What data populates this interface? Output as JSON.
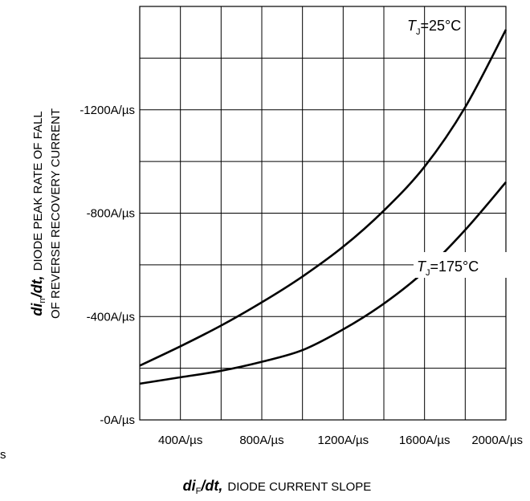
{
  "chart_data": {
    "type": "line",
    "title": "",
    "xlabel": {
      "main": "di",
      "sub": "F",
      "rest": "/dt,",
      "desc": "DIODE CURRENT SLOPE"
    },
    "ylabel": {
      "main": "di",
      "sub": "rr",
      "rest": "/dt,",
      "desc1": "DIODE PEAK RATE OF FALL",
      "desc2": "OF REVERSE RECOVERY CURRENT"
    },
    "x_unit": "A/µs",
    "y_unit": "A/µs",
    "xlim": [
      200,
      2000
    ],
    "ylim": [
      0,
      1600
    ],
    "x_grid": [
      200,
      400,
      600,
      800,
      1000,
      1200,
      1400,
      1600,
      1800,
      2000
    ],
    "y_grid": [
      0,
      200,
      400,
      600,
      800,
      1000,
      1200,
      1400,
      1600
    ],
    "x_ticks": [
      {
        "value": 400,
        "label": "400A/µs"
      },
      {
        "value": 800,
        "label": "800A/µs"
      },
      {
        "value": 1200,
        "label": "1200A/µs"
      },
      {
        "value": 1600,
        "label": "1600A/µs"
      },
      {
        "value": 2000,
        "label": "2000A/µs"
      }
    ],
    "y_ticks": [
      {
        "value": 0,
        "label": "-0A/µs"
      },
      {
        "value": 400,
        "label": "-400A/µs"
      },
      {
        "value": 800,
        "label": "-800A/µs"
      },
      {
        "value": 1200,
        "label": "-1200A/µs"
      }
    ],
    "grid": true,
    "stray_label": "s",
    "series": [
      {
        "label_main": "T",
        "label_sub": "J",
        "label_rest": "=25°C",
        "x": [
          200,
          400,
          600,
          800,
          1000,
          1200,
          1400,
          1600,
          1800,
          2000
        ],
        "y": [
          210,
          285,
          365,
          455,
          555,
          670,
          810,
          980,
          1210,
          1510
        ]
      },
      {
        "label_main": "T",
        "label_sub": "J",
        "label_rest": "=175°C",
        "x": [
          200,
          400,
          600,
          800,
          1000,
          1200,
          1400,
          1600,
          1800,
          2000
        ],
        "y": [
          140,
          165,
          190,
          225,
          270,
          350,
          450,
          575,
          735,
          920
        ]
      }
    ]
  }
}
